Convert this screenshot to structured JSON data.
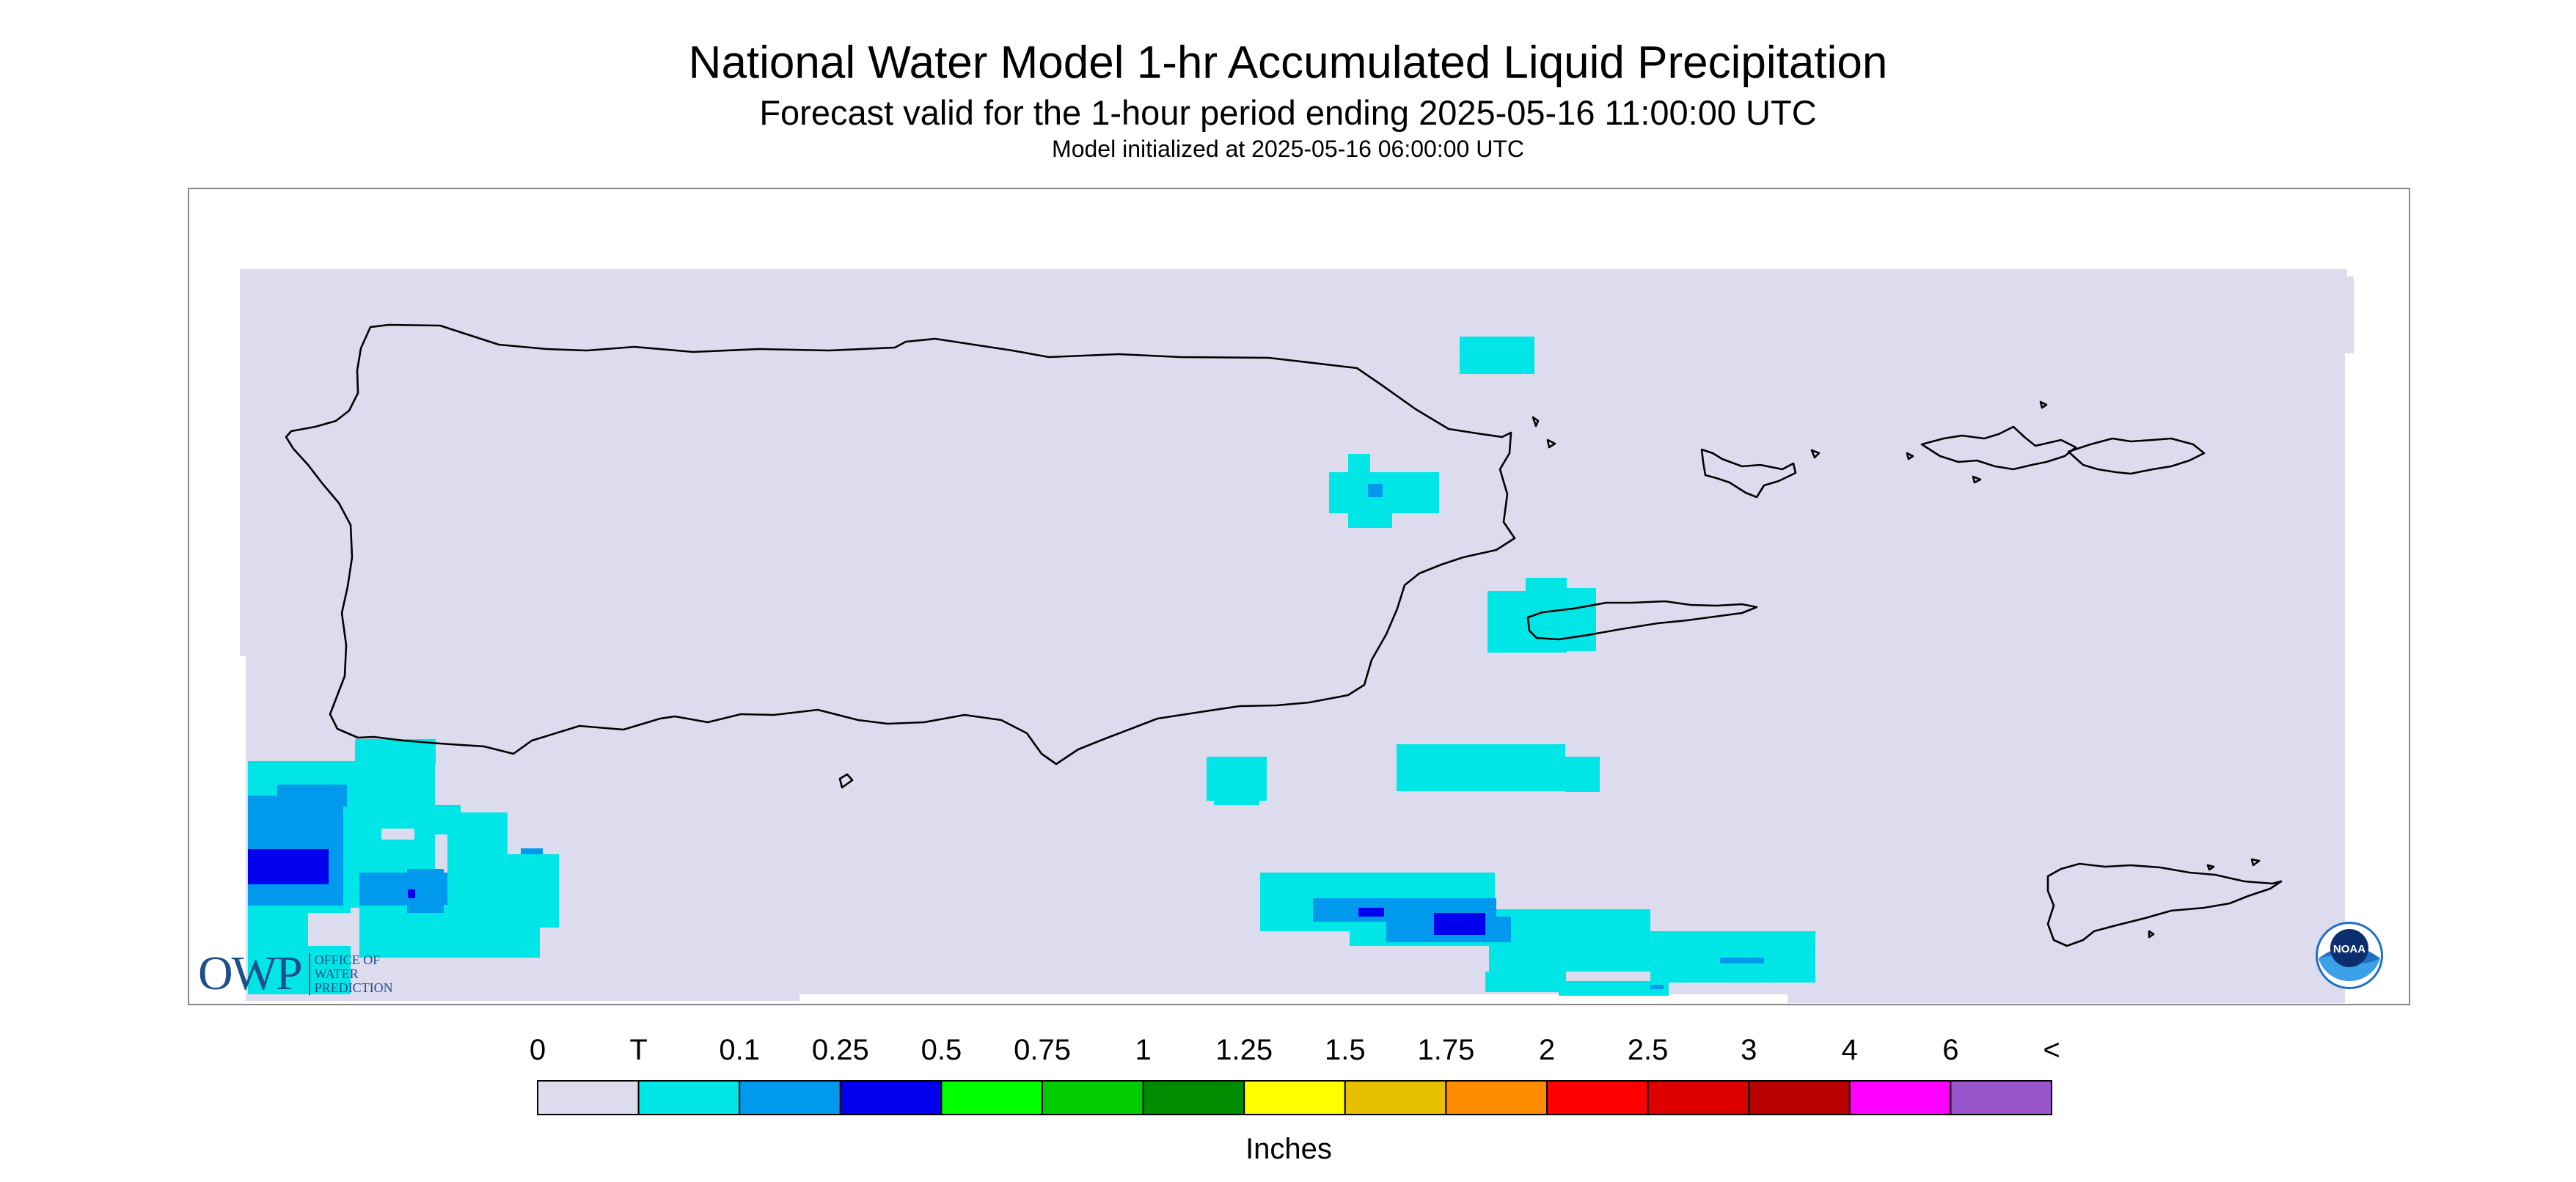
{
  "header": {
    "title": "National Water Model 1-hr Accumulated Liquid Precipitation",
    "subtitle": "Forecast valid for the 1-hour period ending 2025-05-16 11:00:00 UTC",
    "init_line": "Model initialized at 2025-05-16 06:00:00 UTC"
  },
  "legend": {
    "labels": [
      "0",
      "T",
      "0.1",
      "0.25",
      "0.5",
      "0.75",
      "1",
      "1.25",
      "1.5",
      "1.75",
      "2",
      "2.5",
      "3",
      "4",
      "6",
      "<"
    ],
    "colors": [
      "#dcdcee",
      "#00e6e6",
      "#0099ee",
      "#0000ee",
      "#00ff00",
      "#00cc00",
      "#008c00",
      "#ffff00",
      "#e6c000",
      "#ff8c00",
      "#ff0000",
      "#dd0000",
      "#bb0000",
      "#ff00ff",
      "#9955cc"
    ],
    "units": "Inches"
  },
  "logos": {
    "owp_mark": "OWP",
    "owp_text": [
      "OFFICE OF",
      "WATER",
      "PREDICTION"
    ],
    "noaa_text": "NOAA"
  },
  "map": {
    "background_color": "#dcdcee",
    "coastline_color": "#000000",
    "region_features": [
      "Puerto Rico",
      "Vieques",
      "Culebra",
      "St. Thomas",
      "St. John",
      "St. Croix"
    ],
    "precip_color_levels": [
      "T",
      "0.1",
      "0.25"
    ]
  }
}
